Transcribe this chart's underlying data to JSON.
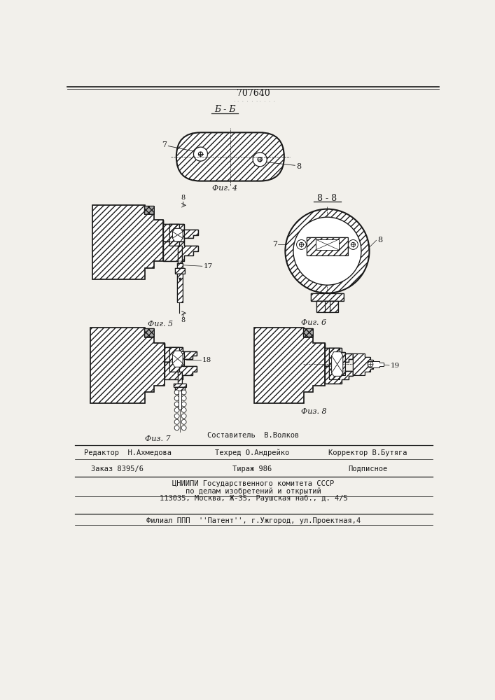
{
  "patent_number": "707640",
  "section_label": "Б - Б",
  "fig4_label": "Фиг. 4",
  "fig5_label": "Фиг. 5",
  "fig6_label": "Фиг. 6",
  "fig7_label": "Физ. 7",
  "fig8_label": "Физ. 8",
  "bg_color": "#f2f0eb",
  "line_color": "#1a1a1a",
  "footer_line1": "Составитель  В.Волков",
  "footer_line2_left": "Редактор  Н.Ахмедова",
  "footer_line2_mid": "Техред О.Андрейко",
  "footer_line2_right": "Корректор В.Бутяга",
  "footer_line3_left": "Заказ 8395/6",
  "footer_line3_mid": "Тираж 986",
  "footer_line3_right": "Подписное",
  "footer_line4": "ЦНИИПИ Государственного комитета СССР",
  "footer_line5": "по делам изобретений и открытий",
  "footer_line6": "113035, Москва, Ж-35, Раушская наб., д. 4/5",
  "footer_line7": "Филиал ППП  ''Патент'', г.Ужгород, ул.Проектная,4"
}
